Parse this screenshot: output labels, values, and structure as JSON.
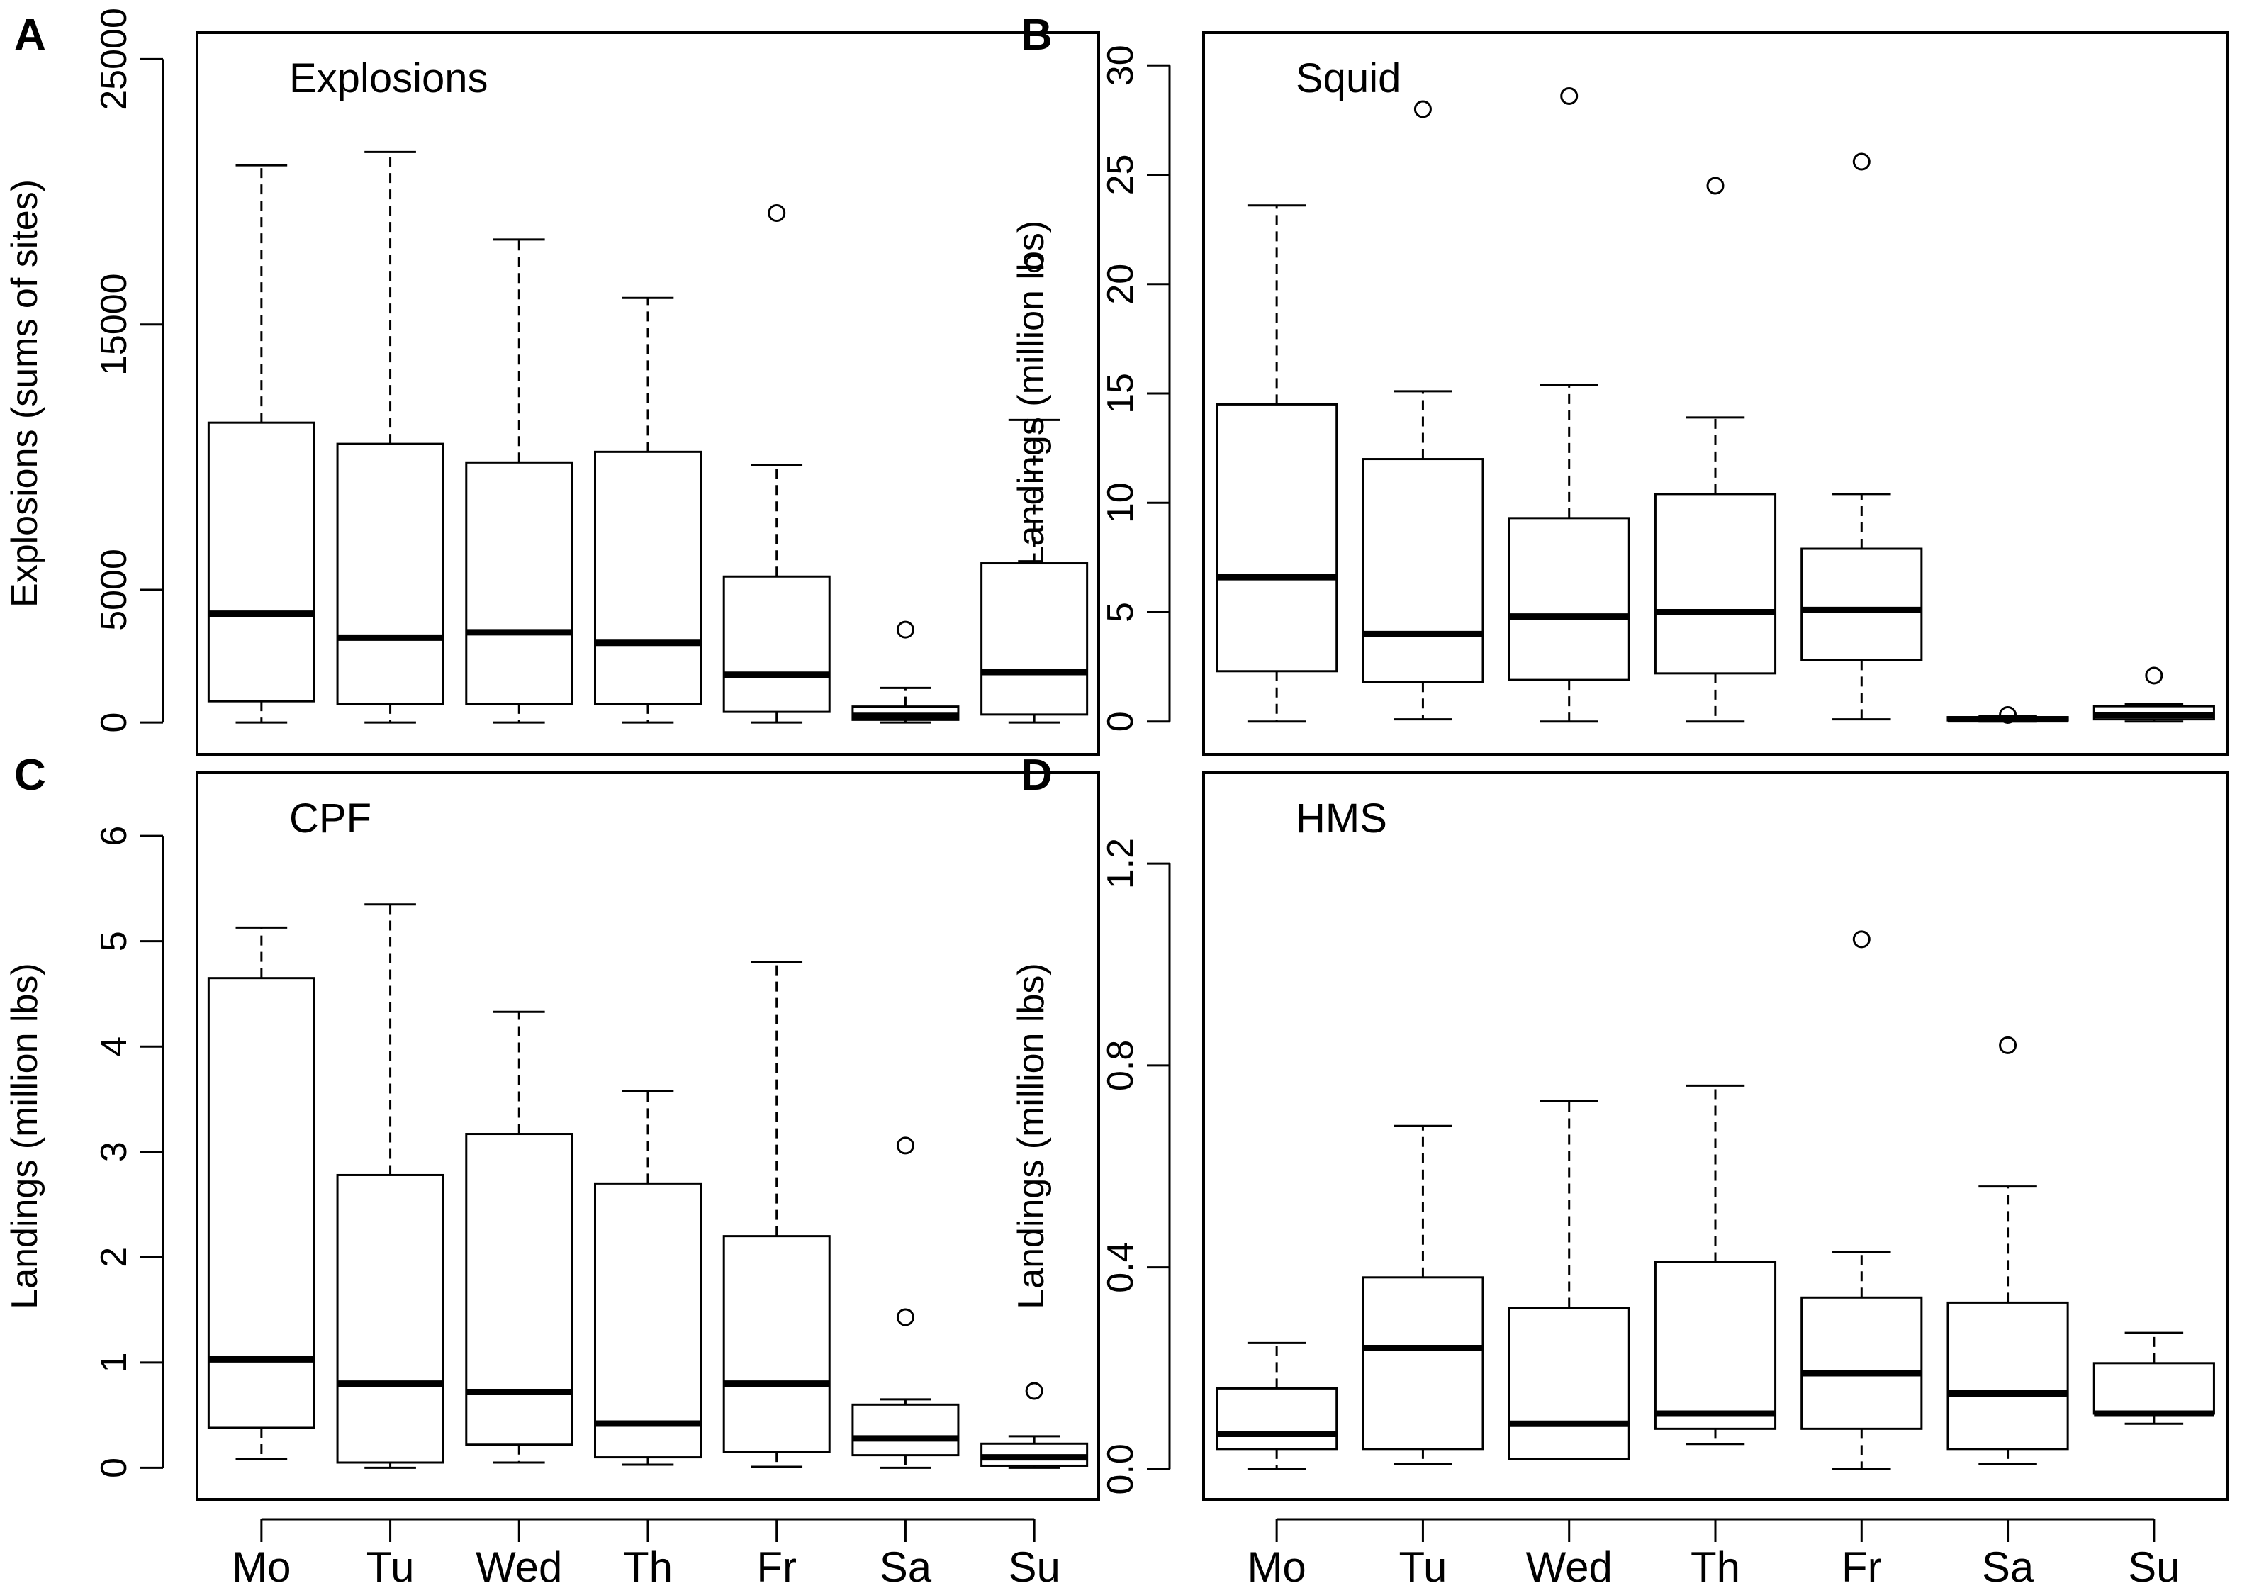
{
  "chart_data": [
    {
      "type": "boxplot",
      "panel_label": "A",
      "title": "Explosions",
      "ylabel": "Explosions (sums of sites)",
      "xlabel": "",
      "ylim": [
        -1200,
        26000
      ],
      "yticks": [
        0,
        5000,
        15000,
        25000
      ],
      "ytick_labels": [
        "0",
        "5000",
        "15000",
        "25000"
      ],
      "categories": [
        "Mo",
        "Tu",
        "Wed",
        "Th",
        "Fr",
        "Sa",
        "Su"
      ],
      "boxes": [
        {
          "whislo": 0,
          "q1": 800,
          "med": 4100,
          "q3": 11300,
          "whishi": 21000,
          "fliers": []
        },
        {
          "whislo": 0,
          "q1": 700,
          "med": 3200,
          "q3": 10500,
          "whishi": 21500,
          "fliers": []
        },
        {
          "whislo": 0,
          "q1": 700,
          "med": 3400,
          "q3": 9800,
          "whishi": 18200,
          "fliers": []
        },
        {
          "whislo": 0,
          "q1": 700,
          "med": 3000,
          "q3": 10200,
          "whishi": 16000,
          "fliers": []
        },
        {
          "whislo": 0,
          "q1": 400,
          "med": 1800,
          "q3": 5500,
          "whishi": 9700,
          "fliers": [
            19200
          ]
        },
        {
          "whislo": 0,
          "q1": 100,
          "med": 250,
          "q3": 600,
          "whishi": 1300,
          "fliers": [
            3500
          ]
        },
        {
          "whislo": 0,
          "q1": 300,
          "med": 1900,
          "q3": 6000,
          "whishi": 11400,
          "fliers": [
            17300
          ]
        }
      ]
    },
    {
      "type": "boxplot",
      "panel_label": "B",
      "title": "Squid",
      "ylabel": "Landings (million lbs)",
      "xlabel": "",
      "ylim": [
        -1.5,
        31.5
      ],
      "yticks": [
        0,
        5,
        10,
        15,
        20,
        25,
        30
      ],
      "ytick_labels": [
        "0",
        "5",
        "10",
        "15",
        "20",
        "25",
        "30"
      ],
      "categories": [
        "Mo",
        "Tu",
        "Wed",
        "Th",
        "Fr",
        "Sa",
        "Su"
      ],
      "boxes": [
        {
          "whislo": 0,
          "q1": 2.3,
          "med": 6.6,
          "q3": 14.5,
          "whishi": 23.6,
          "fliers": []
        },
        {
          "whislo": 0.1,
          "q1": 1.8,
          "med": 4.0,
          "q3": 12.0,
          "whishi": 15.1,
          "fliers": [
            28.0
          ]
        },
        {
          "whislo": 0,
          "q1": 1.9,
          "med": 4.8,
          "q3": 9.3,
          "whishi": 15.4,
          "fliers": [
            28.6
          ]
        },
        {
          "whislo": 0,
          "q1": 2.2,
          "med": 5.0,
          "q3": 10.4,
          "whishi": 13.9,
          "fliers": [
            24.5
          ]
        },
        {
          "whislo": 0.1,
          "q1": 2.8,
          "med": 5.1,
          "q3": 7.9,
          "whishi": 10.4,
          "fliers": [
            25.6
          ]
        },
        {
          "whislo": 0,
          "q1": 0.05,
          "med": 0.1,
          "q3": 0.2,
          "whishi": 0.25,
          "fliers": [
            0.3
          ]
        },
        {
          "whislo": 0,
          "q1": 0.1,
          "med": 0.3,
          "q3": 0.7,
          "whishi": 0.8,
          "fliers": [
            2.1
          ]
        }
      ]
    },
    {
      "type": "boxplot",
      "panel_label": "C",
      "title": "CPF",
      "ylabel": "Landings (million lbs)",
      "xlabel": "",
      "ylim": [
        -0.3,
        6.6
      ],
      "yticks": [
        0,
        1,
        2,
        3,
        4,
        5,
        6
      ],
      "ytick_labels": [
        "0",
        "1",
        "2",
        "3",
        "4",
        "5",
        "6"
      ],
      "categories": [
        "Mo",
        "Tu",
        "Wed",
        "Th",
        "Fr",
        "Sa",
        "Su"
      ],
      "boxes": [
        {
          "whislo": 0.08,
          "q1": 0.38,
          "med": 1.03,
          "q3": 4.65,
          "whishi": 5.13,
          "fliers": []
        },
        {
          "whislo": 0.0,
          "q1": 0.05,
          "med": 0.8,
          "q3": 2.78,
          "whishi": 5.35,
          "fliers": []
        },
        {
          "whislo": 0.05,
          "q1": 0.22,
          "med": 0.72,
          "q3": 3.17,
          "whishi": 4.33,
          "fliers": []
        },
        {
          "whislo": 0.03,
          "q1": 0.1,
          "med": 0.42,
          "q3": 2.7,
          "whishi": 3.58,
          "fliers": []
        },
        {
          "whislo": 0.01,
          "q1": 0.15,
          "med": 0.8,
          "q3": 2.2,
          "whishi": 4.8,
          "fliers": []
        },
        {
          "whislo": 0.0,
          "q1": 0.12,
          "med": 0.28,
          "q3": 0.6,
          "whishi": 0.65,
          "fliers": [
            1.43,
            3.06
          ]
        },
        {
          "whislo": 0.0,
          "q1": 0.02,
          "med": 0.1,
          "q3": 0.23,
          "whishi": 0.3,
          "fliers": [
            0.73
          ]
        }
      ]
    },
    {
      "type": "boxplot",
      "panel_label": "D",
      "title": "HMS",
      "ylabel": "Landings (million lbs)",
      "xlabel": "",
      "ylim": [
        -0.06,
        1.38
      ],
      "yticks": [
        0.0,
        0.4,
        0.8,
        1.2
      ],
      "ytick_labels": [
        "0.0",
        "0.4",
        "0.8",
        "1.2"
      ],
      "categories": [
        "Mo",
        "Tu",
        "Wed",
        "Th",
        "Fr",
        "Sa",
        "Su"
      ],
      "boxes": [
        {
          "whislo": 0.0,
          "q1": 0.04,
          "med": 0.07,
          "q3": 0.16,
          "whishi": 0.25,
          "fliers": []
        },
        {
          "whislo": 0.01,
          "q1": 0.04,
          "med": 0.24,
          "q3": 0.38,
          "whishi": 0.68,
          "fliers": []
        },
        {
          "whislo": 0.02,
          "q1": 0.02,
          "med": 0.09,
          "q3": 0.32,
          "whishi": 0.73,
          "fliers": []
        },
        {
          "whislo": 0.05,
          "q1": 0.08,
          "med": 0.11,
          "q3": 0.41,
          "whishi": 0.76,
          "fliers": []
        },
        {
          "whislo": 0.0,
          "q1": 0.08,
          "med": 0.19,
          "q3": 0.34,
          "whishi": 0.43,
          "fliers": [
            1.05
          ]
        },
        {
          "whislo": 0.01,
          "q1": 0.04,
          "med": 0.15,
          "q3": 0.33,
          "whishi": 0.56,
          "fliers": [
            0.84
          ]
        },
        {
          "whislo": 0.09,
          "q1": 0.11,
          "med": 0.11,
          "q3": 0.21,
          "whishi": 0.27,
          "fliers": []
        }
      ]
    }
  ]
}
